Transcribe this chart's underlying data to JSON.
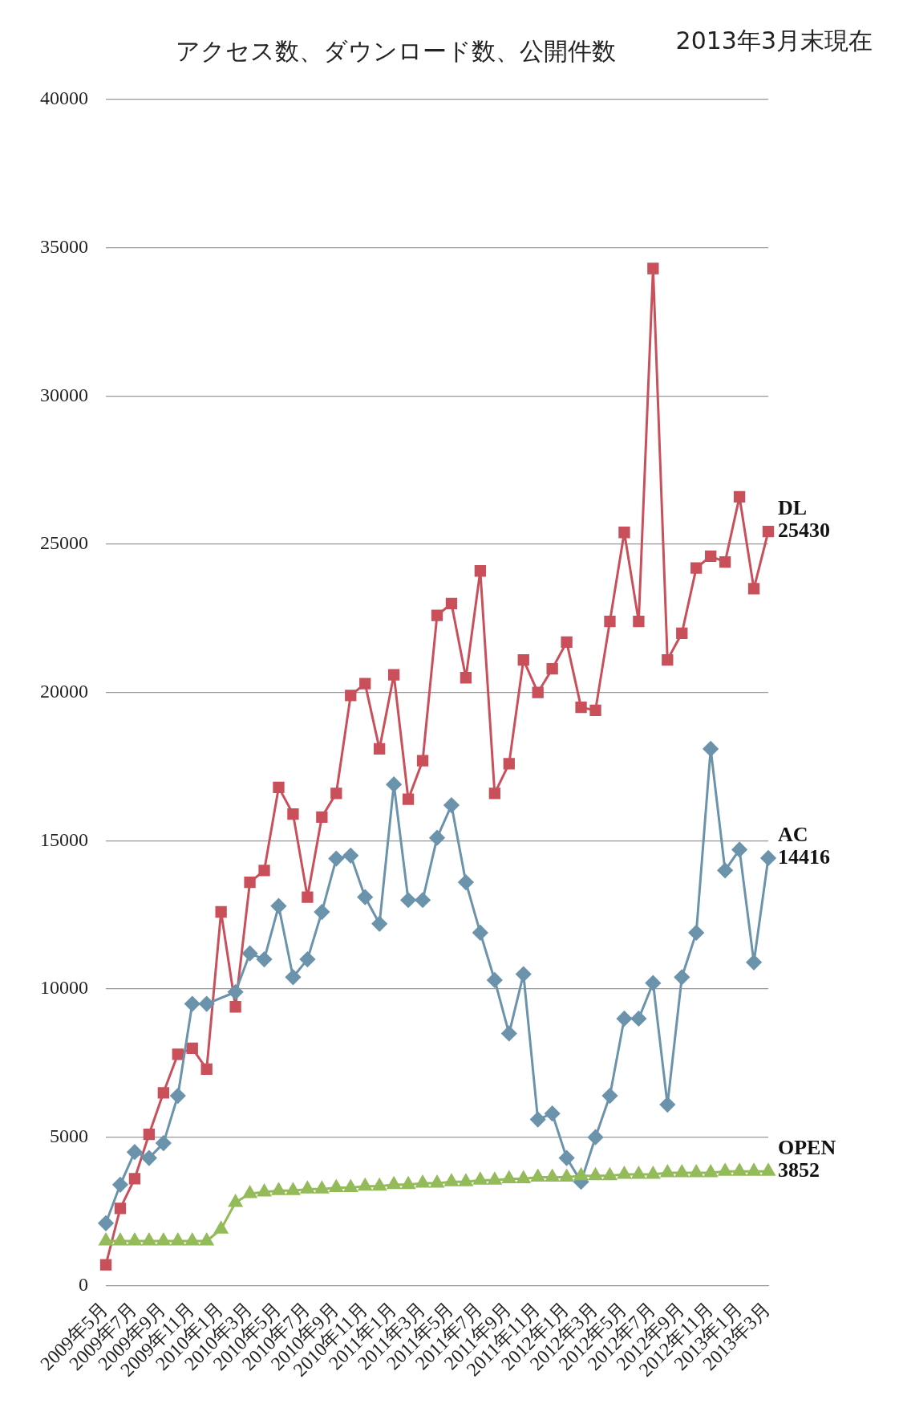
{
  "chart_data": {
    "type": "line",
    "title": "アクセス数、ダウンロード数、公開件数",
    "annotations": [
      "2013年3月末現在"
    ],
    "categories": [
      "2009年5月",
      null,
      "2009年7月",
      null,
      "2009年9月",
      null,
      "2009年11月",
      null,
      "2010年1月",
      null,
      "2010年3月",
      null,
      "2010年5月",
      null,
      "2010年7月",
      null,
      "2010年9月",
      null,
      "2010年11月",
      null,
      "2011年1月",
      null,
      "2011年3月",
      null,
      "2011年5月",
      null,
      "2011年7月",
      null,
      "2011年9月",
      null,
      "2011年11月",
      null,
      "2012年1月",
      null,
      "2012年3月",
      null,
      "2012年5月",
      null,
      "2012年7月",
      null,
      "2012年9月",
      null,
      "2012年11月",
      null,
      "2013年1月",
      null,
      "2013年3月"
    ],
    "series": [
      {
        "name": "DL",
        "color": "#c9505a",
        "marker": "square",
        "values": [
          700,
          2600,
          3600,
          5100,
          6500,
          7800,
          8000,
          7300,
          12600,
          9400,
          13600,
          14000,
          16800,
          15900,
          13100,
          15800,
          16600,
          19900,
          20300,
          18100,
          20600,
          16400,
          17700,
          22600,
          23000,
          20500,
          24100,
          16600,
          17600,
          21100,
          20000,
          20800,
          21700,
          19500,
          19400,
          22400,
          25400,
          22400,
          34300,
          21100,
          22000,
          24200,
          24600,
          24400,
          26600,
          23500,
          25430
        ],
        "value_labels": [
          null,
          null,
          null,
          null,
          null,
          null,
          null,
          null,
          null,
          null,
          null,
          null,
          null,
          null,
          null,
          null,
          null,
          null,
          null,
          null,
          null,
          null,
          null,
          null,
          null,
          null,
          null,
          null,
          null,
          null,
          null,
          null,
          null,
          null,
          null,
          null,
          null,
          null,
          null,
          null,
          null,
          null,
          null,
          null,
          null,
          null,
          "25430"
        ]
      },
      {
        "name": "AC",
        "color": "#6b93ab",
        "marker": "diamond",
        "values": [
          2100,
          3400,
          4500,
          4300,
          4800,
          6400,
          9500,
          9500,
          null,
          9900,
          11200,
          11000,
          12800,
          10400,
          11000,
          12600,
          14400,
          14500,
          13100,
          12200,
          16900,
          13000,
          13000,
          15100,
          16200,
          13600,
          11900,
          10300,
          8500,
          10500,
          5600,
          5800,
          4300,
          3500,
          5000,
          6400,
          9000,
          9000,
          10200,
          6100,
          10400,
          11900,
          18100,
          14000,
          14700,
          10900,
          14416
        ],
        "value_labels": [
          null,
          null,
          null,
          null,
          null,
          null,
          null,
          null,
          null,
          null,
          null,
          null,
          null,
          null,
          null,
          null,
          null,
          null,
          null,
          null,
          null,
          null,
          null,
          null,
          null,
          null,
          null,
          null,
          null,
          null,
          null,
          null,
          null,
          null,
          null,
          null,
          null,
          null,
          null,
          null,
          null,
          null,
          null,
          null,
          null,
          null,
          "14416"
        ]
      },
      {
        "name": "OPEN",
        "color": "#94bb5a",
        "marker": "triangle",
        "values": [
          1500,
          1500,
          1500,
          1500,
          1500,
          1500,
          1500,
          1500,
          1900,
          2800,
          3100,
          3150,
          3200,
          3200,
          3250,
          3250,
          3300,
          3300,
          3350,
          3350,
          3400,
          3400,
          3450,
          3450,
          3500,
          3500,
          3550,
          3550,
          3600,
          3600,
          3650,
          3650,
          3650,
          3700,
          3700,
          3700,
          3750,
          3750,
          3750,
          3800,
          3800,
          3800,
          3800,
          3850,
          3850,
          3850,
          3852
        ],
        "value_labels": [
          null,
          null,
          null,
          null,
          null,
          null,
          null,
          null,
          null,
          null,
          null,
          null,
          null,
          null,
          null,
          null,
          null,
          null,
          null,
          null,
          null,
          null,
          null,
          null,
          null,
          null,
          null,
          null,
          null,
          null,
          null,
          null,
          null,
          null,
          null,
          null,
          null,
          null,
          null,
          null,
          null,
          null,
          null,
          null,
          null,
          null,
          "3852"
        ]
      }
    ],
    "ylim": [
      0,
      40000
    ],
    "yticks": [
      0,
      5000,
      10000,
      15000,
      20000,
      25000,
      30000,
      35000,
      40000
    ],
    "grid": "y",
    "legend": false
  }
}
